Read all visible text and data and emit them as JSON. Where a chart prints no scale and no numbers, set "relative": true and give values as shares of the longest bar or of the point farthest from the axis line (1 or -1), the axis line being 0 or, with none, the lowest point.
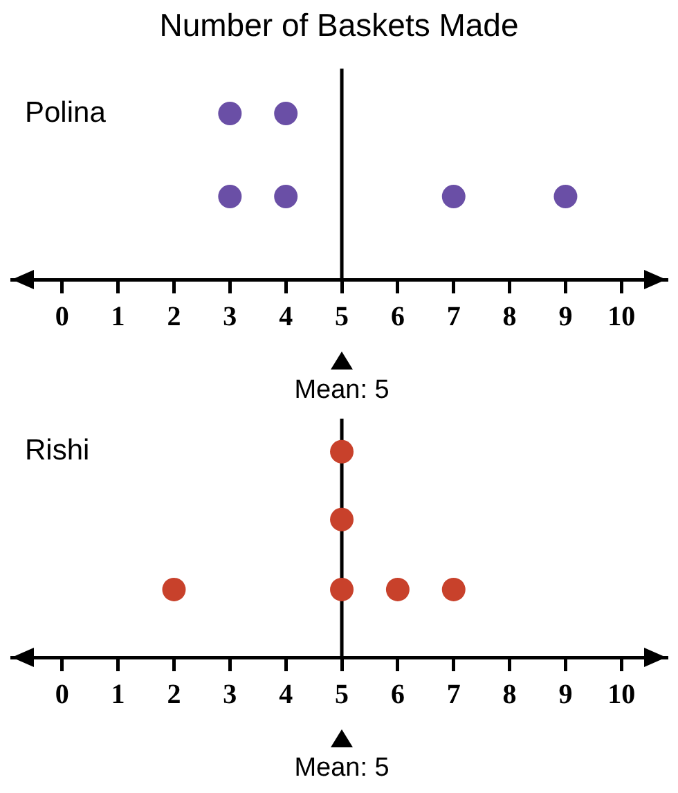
{
  "chart_data": [
    {
      "type": "scatter",
      "title": "Number of Baskets Made",
      "relative": true,
      "marker": "circle",
      "legend": false,
      "xlim": [
        -0.9,
        10.8
      ],
      "xticks": [
        0,
        1,
        2,
        3,
        4,
        5,
        6,
        7,
        8,
        9,
        10
      ],
      "ylabel": "Polina",
      "series": [
        {
          "color": "#6a4fa6",
          "x": [
            3,
            3,
            4,
            4,
            7,
            9
          ],
          "values": [
            0.5,
            1,
            0.5,
            1,
            0.5,
            0.5
          ]
        }
      ],
      "ref_lines": [
        {
          "axis": "x",
          "value": 5,
          "label": "Mean: 5"
        }
      ]
    },
    {
      "type": "scatter",
      "relative": true,
      "marker": "circle",
      "legend": false,
      "xlim": [
        -0.9,
        10.8
      ],
      "xticks": [
        0,
        1,
        2,
        3,
        4,
        5,
        6,
        7,
        8,
        9,
        10
      ],
      "ylabel": "Rishi",
      "series": [
        {
          "color": "#c8412b",
          "x": [
            2,
            5,
            5,
            5,
            6,
            7
          ],
          "values": [
            0.33,
            0.33,
            0.67,
            1,
            0.33,
            0.33
          ]
        }
      ],
      "ref_lines": [
        {
          "axis": "x",
          "value": 5,
          "label": "Mean: 5"
        }
      ]
    }
  ]
}
